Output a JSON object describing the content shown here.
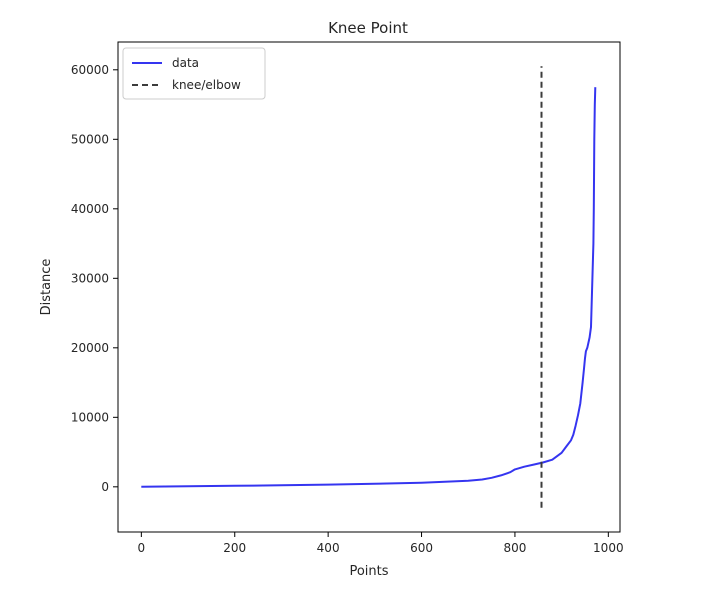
{
  "chart_data": {
    "type": "line",
    "title": "Knee Point",
    "xlabel": "Points",
    "ylabel": "Distance",
    "xlim": [
      -50,
      1025
    ],
    "ylim": [
      -6500,
      64000
    ],
    "x_ticks": [
      0,
      200,
      400,
      600,
      800,
      1000
    ],
    "y_ticks": [
      0,
      10000,
      20000,
      30000,
      40000,
      50000,
      60000
    ],
    "grid": false,
    "legend": {
      "placement": "top-left",
      "entries": [
        "data",
        "knee/elbow"
      ]
    },
    "series": [
      {
        "name": "data",
        "color": "#3535f0",
        "style": "solid",
        "x": [
          0,
          100,
          200,
          300,
          400,
          500,
          600,
          650,
          700,
          730,
          750,
          770,
          790,
          800,
          820,
          840,
          860,
          880,
          900,
          910,
          920,
          925,
          930,
          935,
          940,
          945,
          948,
          950,
          952,
          955,
          960,
          963,
          966,
          968,
          969,
          970,
          971,
          972
        ],
        "y": [
          0,
          70,
          140,
          220,
          320,
          430,
          600,
          720,
          880,
          1050,
          1300,
          1650,
          2100,
          2500,
          2900,
          3200,
          3500,
          3900,
          4900,
          5800,
          6700,
          7500,
          8800,
          10300,
          12000,
          15000,
          17000,
          18500,
          19500,
          20000,
          21500,
          23000,
          30000,
          35000,
          40000,
          50000,
          55000,
          57500
        ]
      },
      {
        "name": "knee/elbow",
        "color": "#3c3c3c",
        "style": "dashed",
        "x": [
          857,
          857
        ],
        "y": [
          -3000,
          60500
        ]
      }
    ]
  }
}
